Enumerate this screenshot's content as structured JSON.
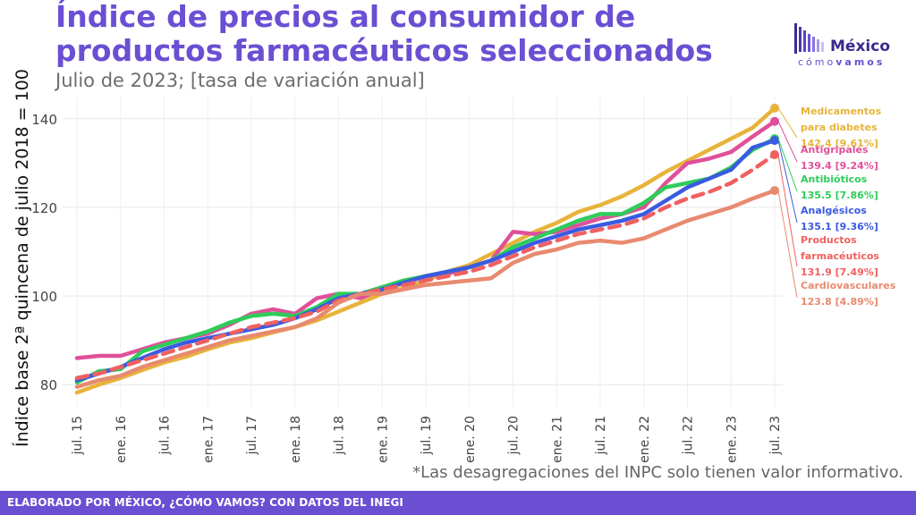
{
  "header": {
    "title": "Índice de precios al consumidor de productos farmacéuticos seleccionados",
    "subtitle": "Julio de 2023; [tasa de variación anual]"
  },
  "logo": {
    "name": "México",
    "tagline_a": "cómo",
    "tagline_b": "vamos"
  },
  "note": "*Las desagregaciones del INPC solo tienen valor informativo.",
  "footer": "ELABORADO POR MÉXICO, ¿CÓMO VAMOS? CON DATOS DEL INEGI",
  "chart_data": {
    "type": "line",
    "ylabel": "Índice base 2ª quincena de julio 2018 = 100",
    "xlabel": "",
    "ylim": [
      75,
      145
    ],
    "yticks": [
      80,
      100,
      120,
      140
    ],
    "x_ticks": [
      "jul. 15",
      "ene. 16",
      "jul. 16",
      "ene. 17",
      "jul. 17",
      "ene. 18",
      "jul. 18",
      "ene. 19",
      "jul. 19",
      "ene. 20",
      "jul. 20",
      "ene. 21",
      "jul. 21",
      "ene. 22",
      "jul. 22",
      "ene. 23",
      "jul. 23"
    ],
    "grid": true,
    "series": [
      {
        "name": "Medicamentos para diabetes",
        "color": "#e8b33a",
        "dashed": false,
        "label_lines": [
          "Medicamentos",
          "para diabetes"
        ],
        "end_label": "142.4 [9.61%]",
        "points": [
          [
            0,
            78.2
          ],
          [
            1,
            80
          ],
          [
            2,
            81.5
          ],
          [
            3,
            83.3
          ],
          [
            4,
            85
          ],
          [
            5,
            86.3
          ],
          [
            6,
            88
          ],
          [
            7,
            89.5
          ],
          [
            8,
            90.5
          ],
          [
            9,
            91.8
          ],
          [
            10,
            93
          ],
          [
            11,
            94.5
          ],
          [
            12,
            96.5
          ],
          [
            13,
            98.5
          ],
          [
            14,
            100.5
          ],
          [
            15,
            101.8
          ],
          [
            16,
            103.5
          ],
          [
            17,
            105.5
          ],
          [
            18,
            107
          ],
          [
            19,
            109.5
          ],
          [
            20,
            112
          ],
          [
            21,
            114.5
          ],
          [
            22,
            116.5
          ],
          [
            23,
            119
          ],
          [
            24,
            120.5
          ],
          [
            25,
            122.5
          ],
          [
            26,
            125
          ],
          [
            27,
            128
          ],
          [
            28,
            130.5
          ],
          [
            29,
            133
          ],
          [
            30,
            135.5
          ],
          [
            31,
            138
          ],
          [
            32,
            142.4
          ]
        ]
      },
      {
        "name": "Antigripales",
        "color": "#e0509a",
        "dashed": false,
        "label_lines": [
          "Antigripales"
        ],
        "end_label": "139.4 [9.24%]",
        "points": [
          [
            0,
            86
          ],
          [
            1,
            86.5
          ],
          [
            2,
            86.5
          ],
          [
            3,
            88
          ],
          [
            4,
            89.5
          ],
          [
            5,
            90.5
          ],
          [
            6,
            91.5
          ],
          [
            7,
            93.5
          ],
          [
            8,
            96
          ],
          [
            9,
            97
          ],
          [
            10,
            96
          ],
          [
            11,
            99.5
          ],
          [
            12,
            100.5
          ],
          [
            13,
            99.5
          ],
          [
            14,
            101.5
          ],
          [
            15,
            103
          ],
          [
            16,
            104.5
          ],
          [
            17,
            105
          ],
          [
            18,
            106.5
          ],
          [
            19,
            108
          ],
          [
            20,
            114.5
          ],
          [
            21,
            114
          ],
          [
            22,
            114.5
          ],
          [
            23,
            116
          ],
          [
            24,
            117.5
          ],
          [
            25,
            118.5
          ],
          [
            26,
            120
          ],
          [
            27,
            125.5
          ],
          [
            28,
            130
          ],
          [
            29,
            131
          ],
          [
            30,
            132.5
          ],
          [
            31,
            136
          ],
          [
            32,
            139.4
          ]
        ]
      },
      {
        "name": "Antibióticos",
        "color": "#2ecc5a",
        "dashed": false,
        "label_lines": [
          "Antibióticos"
        ],
        "end_label": "135.5 [7.86%]",
        "points": [
          [
            0,
            80.5
          ],
          [
            1,
            83
          ],
          [
            2,
            83.5
          ],
          [
            3,
            87.5
          ],
          [
            4,
            89
          ],
          [
            5,
            90.5
          ],
          [
            6,
            92
          ],
          [
            7,
            94
          ],
          [
            8,
            95.5
          ],
          [
            9,
            96
          ],
          [
            10,
            95.5
          ],
          [
            11,
            97.5
          ],
          [
            12,
            100.5
          ],
          [
            13,
            100.5
          ],
          [
            14,
            102
          ],
          [
            15,
            103.5
          ],
          [
            16,
            104.5
          ],
          [
            17,
            105.5
          ],
          [
            18,
            106.5
          ],
          [
            19,
            108
          ],
          [
            20,
            111
          ],
          [
            21,
            113
          ],
          [
            22,
            115
          ],
          [
            23,
            117
          ],
          [
            24,
            118.5
          ],
          [
            25,
            118.5
          ],
          [
            26,
            121
          ],
          [
            27,
            124.5
          ],
          [
            28,
            125.5
          ],
          [
            29,
            126.5
          ],
          [
            30,
            129
          ],
          [
            31,
            133
          ],
          [
            32,
            135.5
          ]
        ]
      },
      {
        "name": "Analgésicos",
        "color": "#3a5be0",
        "dashed": false,
        "label_lines": [
          "Analgésicos"
        ],
        "end_label": "135.1 [9.36%]",
        "points": [
          [
            0,
            81
          ],
          [
            1,
            82.5
          ],
          [
            2,
            84
          ],
          [
            3,
            86
          ],
          [
            4,
            88
          ],
          [
            5,
            89.5
          ],
          [
            6,
            90.5
          ],
          [
            7,
            91.5
          ],
          [
            8,
            92.5
          ],
          [
            9,
            93.5
          ],
          [
            10,
            95
          ],
          [
            11,
            97
          ],
          [
            12,
            99.5
          ],
          [
            13,
            100.5
          ],
          [
            14,
            101.5
          ],
          [
            15,
            103
          ],
          [
            16,
            104.5
          ],
          [
            17,
            105.5
          ],
          [
            18,
            106.5
          ],
          [
            19,
            108
          ],
          [
            20,
            110
          ],
          [
            21,
            112
          ],
          [
            22,
            113.5
          ],
          [
            23,
            115
          ],
          [
            24,
            116
          ],
          [
            25,
            117
          ],
          [
            26,
            118.5
          ],
          [
            27,
            121.5
          ],
          [
            28,
            124.5
          ],
          [
            29,
            126.5
          ],
          [
            30,
            128.5
          ],
          [
            31,
            133.5
          ],
          [
            32,
            135.1
          ]
        ]
      },
      {
        "name": "Productos farmacéuticos",
        "color": "#f06060",
        "dashed": true,
        "label_lines": [
          "Productos",
          "farmacéuticos"
        ],
        "end_label": "131.9 [7.49%]",
        "points": [
          [
            0,
            81.5
          ],
          [
            1,
            82.5
          ],
          [
            2,
            84
          ],
          [
            3,
            85.5
          ],
          [
            4,
            87
          ],
          [
            5,
            88.5
          ],
          [
            6,
            90
          ],
          [
            7,
            91.5
          ],
          [
            8,
            93
          ],
          [
            9,
            94
          ],
          [
            10,
            95
          ],
          [
            11,
            96.5
          ],
          [
            12,
            99
          ],
          [
            13,
            100.5
          ],
          [
            14,
            101.5
          ],
          [
            15,
            102.5
          ],
          [
            16,
            103.5
          ],
          [
            17,
            104.5
          ],
          [
            18,
            105.5
          ],
          [
            19,
            107
          ],
          [
            20,
            109
          ],
          [
            21,
            111
          ],
          [
            22,
            112.5
          ],
          [
            23,
            114
          ],
          [
            24,
            115
          ],
          [
            25,
            116
          ],
          [
            26,
            117.5
          ],
          [
            27,
            120
          ],
          [
            28,
            122
          ],
          [
            29,
            123.5
          ],
          [
            30,
            125.5
          ],
          [
            31,
            128.5
          ],
          [
            32,
            131.9
          ]
        ]
      },
      {
        "name": "Cardiovasculares",
        "color": "#e88a70",
        "dashed": false,
        "label_lines": [
          "Cardiovasculares"
        ],
        "end_label": "123.8 [4.89%]",
        "points": [
          [
            0,
            79.5
          ],
          [
            1,
            81
          ],
          [
            2,
            82
          ],
          [
            3,
            84
          ],
          [
            4,
            85.5
          ],
          [
            5,
            87
          ],
          [
            6,
            88.5
          ],
          [
            7,
            90
          ],
          [
            8,
            91
          ],
          [
            9,
            92
          ],
          [
            10,
            93
          ],
          [
            11,
            95
          ],
          [
            12,
            98.5
          ],
          [
            13,
            100.5
          ],
          [
            14,
            100.5
          ],
          [
            15,
            101.5
          ],
          [
            16,
            102.5
          ],
          [
            17,
            103
          ],
          [
            18,
            103.5
          ],
          [
            19,
            104
          ],
          [
            20,
            107.5
          ],
          [
            21,
            109.5
          ],
          [
            22,
            110.5
          ],
          [
            23,
            112
          ],
          [
            24,
            112.5
          ],
          [
            25,
            112
          ],
          [
            26,
            113
          ],
          [
            27,
            115
          ],
          [
            28,
            117
          ],
          [
            29,
            118.5
          ],
          [
            30,
            120
          ],
          [
            31,
            122
          ],
          [
            32,
            123.8
          ]
        ]
      }
    ]
  }
}
